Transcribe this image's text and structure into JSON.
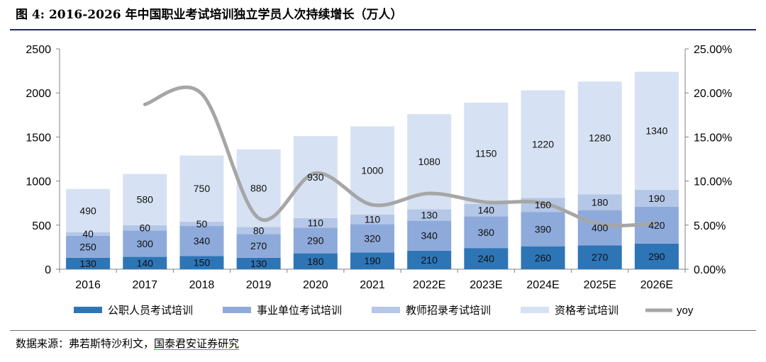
{
  "figure": {
    "title": "图 4:  2016-2026 年中国职业考试培训独立学员人次持续增长（万人）",
    "source_prefix": "数据来源：弗若斯特沙利文，",
    "source_highlight": "国泰君安证券研究"
  },
  "chart_data": {
    "type": "bar",
    "stacked": true,
    "title": "2016-2026 年中国职业考试培训独立学员人次持续增长（万人）",
    "categories": [
      "2016",
      "2017",
      "2018",
      "2019",
      "2020",
      "2021",
      "2022E",
      "2023E",
      "2024E",
      "2025E",
      "2026E"
    ],
    "series": [
      {
        "name": "公职人员考试培训",
        "color": "#2e75b6",
        "values": [
          130,
          140,
          150,
          130,
          180,
          190,
          210,
          240,
          260,
          270,
          290
        ]
      },
      {
        "name": "事业单位考试培训",
        "color": "#8eaadb",
        "values": [
          250,
          300,
          340,
          270,
          290,
          320,
          340,
          360,
          390,
          400,
          420
        ]
      },
      {
        "name": "教师招录考试培训",
        "color": "#b4c7e7",
        "values": [
          40,
          60,
          50,
          80,
          110,
          110,
          130,
          140,
          160,
          180,
          190
        ]
      },
      {
        "name": "资格考试培训",
        "color": "#d6e2f3",
        "values": [
          490,
          580,
          750,
          880,
          930,
          1000,
          1080,
          1150,
          1220,
          1280,
          1340
        ]
      }
    ],
    "line": {
      "name": "yoy",
      "color": "#a6a6a6",
      "axis": "right",
      "values": [
        null,
        18.7,
        19.9,
        5.8,
        10.9,
        7.3,
        8.6,
        7.6,
        7.5,
        5.1,
        5.2
      ]
    },
    "y_left": {
      "min": 0,
      "max": 2500,
      "ticks": [
        0,
        500,
        1000,
        1500,
        2000,
        2500
      ]
    },
    "y_right": {
      "min": 0,
      "max": 25,
      "ticks": [
        "0.00%",
        "5.00%",
        "10.00%",
        "15.00%",
        "20.00%",
        "25.00%"
      ]
    },
    "legend_position": "bottom",
    "grid": false
  }
}
